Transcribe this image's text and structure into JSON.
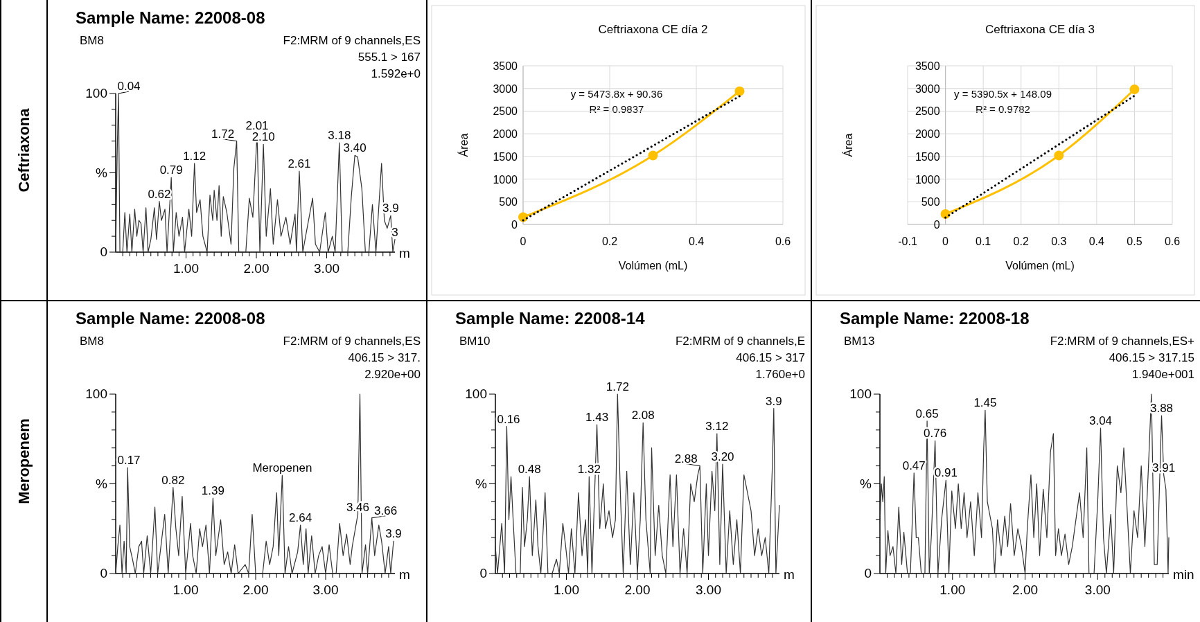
{
  "chart_data": [
    {
      "type": "other",
      "annotations": [
        "Ceftriaxona",
        "Meropenem"
      ]
    },
    {
      "type": "line",
      "title": "Sample Name: 22008-08",
      "subtitle": "BM8",
      "xlabel": "m",
      "xlim": [
        0,
        3.97
      ],
      "ylim": [
        0,
        100
      ],
      "xticks": [
        {
          "value": 0.1,
          "label": null
        },
        {
          "value": 0.2,
          "label": null
        },
        {
          "value": 0.3,
          "label": null
        },
        {
          "value": 0.4,
          "label": null
        },
        {
          "value": 0.5,
          "label": null
        },
        {
          "value": 0.6,
          "label": null
        },
        {
          "value": 0.7,
          "label": null
        },
        {
          "value": 0.8,
          "label": null
        },
        {
          "value": 0.9,
          "label": null
        },
        {
          "value": 1,
          "label": "1.00"
        },
        {
          "value": 1.1,
          "label": null
        },
        {
          "value": 1.2,
          "label": null
        },
        {
          "value": 1.3,
          "label": null
        },
        {
          "value": 1.4,
          "label": null
        },
        {
          "value": 1.5,
          "label": null
        },
        {
          "value": 1.6,
          "label": null
        },
        {
          "value": 1.7,
          "label": null
        },
        {
          "value": 1.8,
          "label": null
        },
        {
          "value": 1.9,
          "label": null
        },
        {
          "value": 2,
          "label": "2.00"
        },
        {
          "value": 2.1,
          "label": null
        },
        {
          "value": 2.2,
          "label": null
        },
        {
          "value": 2.3,
          "label": null
        },
        {
          "value": 2.4,
          "label": null
        },
        {
          "value": 2.5,
          "label": null
        },
        {
          "value": 2.6,
          "label": null
        },
        {
          "value": 2.7,
          "label": null
        },
        {
          "value": 2.8,
          "label": null
        },
        {
          "value": 2.9,
          "label": null
        },
        {
          "value": 3,
          "label": "3.00"
        },
        {
          "value": 3.1,
          "label": null
        },
        {
          "value": 3.2,
          "label": null
        },
        {
          "value": 3.3,
          "label": null
        },
        {
          "value": 3.4,
          "label": null
        },
        {
          "value": 3.5,
          "label": null
        },
        {
          "value": 3.6,
          "label": null
        },
        {
          "value": 3.7,
          "label": null
        },
        {
          "value": 3.8,
          "label": null
        },
        {
          "value": 3.9,
          "label": null
        }
      ],
      "yticks": [
        0,
        {
          "value": 10,
          "label": null
        },
        {
          "value": 20,
          "label": null
        },
        {
          "value": 30,
          "label": null
        },
        {
          "value": 40,
          "label": null
        },
        {
          "value": 50,
          "label": "%"
        },
        {
          "value": 60,
          "label": null
        },
        {
          "value": 70,
          "label": null
        },
        {
          "value": 80,
          "label": null
        },
        {
          "value": 90,
          "label": null
        },
        100
      ],
      "series": [
        {
          "color": "#333333",
          "x": [
            0,
            0.02,
            0.04,
            0.06,
            0.1,
            0.13,
            0.16,
            0.2,
            0.23,
            0.27,
            0.3,
            0.33,
            0.36,
            0.39,
            0.43,
            0.46,
            0.5,
            0.55,
            0.58,
            0.62,
            0.65,
            0.7,
            0.73,
            0.79,
            0.82,
            0.86,
            0.9,
            0.95,
            0.98,
            1.04,
            1.08,
            1.12,
            1.15,
            1.2,
            1.24,
            1.3,
            1.34,
            1.38,
            1.4,
            1.44,
            1.47,
            1.5,
            1.53,
            1.58,
            1.64,
            1.68,
            1.72,
            1.75,
            1.85,
            1.9,
            1.95,
            2.01,
            2.05,
            2.1,
            2.14,
            2.2,
            2.24,
            2.3,
            2.35,
            2.42,
            2.48,
            2.55,
            2.57,
            2.61,
            2.66,
            2.7,
            2.8,
            2.84,
            2.9,
            2.98,
            3.02,
            3.08,
            3.12,
            3.18,
            3.22,
            3.3,
            3.35,
            3.4,
            3.44,
            3.5,
            3.55,
            3.6,
            3.65,
            3.7,
            3.78,
            3.82,
            3.86,
            3.91,
            3.94,
            3.97
          ],
          "values": [
            0,
            60,
            100,
            0,
            0,
            25,
            0,
            24,
            0,
            27,
            10,
            20,
            18,
            0,
            28,
            0,
            8,
            28,
            8,
            32,
            20,
            27,
            0,
            47,
            0,
            25,
            10,
            22,
            0,
            27,
            10,
            56,
            25,
            33,
            10,
            0,
            36,
            20,
            39,
            20,
            42,
            10,
            35,
            25,
            5,
            53,
            70,
            0,
            0,
            34,
            22,
            75,
            0,
            68,
            10,
            40,
            5,
            33,
            10,
            22,
            5,
            24,
            0,
            51,
            0,
            10,
            34,
            5,
            0,
            25,
            0,
            10,
            0,
            69,
            0,
            0,
            35,
            61,
            60,
            40,
            0,
            0,
            30,
            0,
            56,
            20,
            15,
            23,
            0,
            8
          ]
        }
      ],
      "annotations": [
        "F2:MRM of 9 channels,ES",
        "555.1 > 167",
        "1.592e+0",
        {
          "text": "0.04",
          "x": 0.04,
          "y": 100
        },
        {
          "text": "0.62",
          "x": 0.62,
          "y": 32
        },
        {
          "text": "0.79",
          "x": 0.79,
          "y": 47
        },
        {
          "text": "1.12",
          "x": 1.12,
          "y": 56
        },
        {
          "text": "1.72",
          "x": 1.72,
          "y": 70
        },
        {
          "text": "2.01",
          "x": 2.01,
          "y": 75
        },
        {
          "text": "2.10",
          "x": 2.1,
          "y": 68
        },
        {
          "text": "2.61",
          "x": 2.61,
          "y": 51
        },
        {
          "text": "3.18",
          "x": 3.18,
          "y": 69
        },
        {
          "text": "3.40",
          "x": 3.4,
          "y": 61
        },
        {
          "text": "3.9",
          "x": 3.91,
          "y": 23
        },
        {
          "text": "3",
          "x": 3.97,
          "y": 8
        }
      ]
    },
    {
      "type": "line",
      "title": "Ceftriaxona CE día 2",
      "xlabel": "Volúmen (mL)",
      "ylabel": "Área",
      "xlim": [
        0,
        0.6
      ],
      "xticks": [
        0,
        0.2,
        0.4,
        0.6
      ],
      "ylim": [
        0,
        3500
      ],
      "yticks": [
        0,
        500,
        1000,
        1500,
        2000,
        2500,
        3000,
        3500
      ],
      "grid": true,
      "series": [
        {
          "color": "#ffc000",
          "marker": "circle",
          "x": [
            0,
            0.3,
            0.5
          ],
          "values": [
            160,
            1520,
            2940
          ]
        },
        {
          "color": "#000000",
          "line_style": "dotted",
          "x": [
            0,
            0.5
          ],
          "values": [
            90,
            2830
          ]
        }
      ],
      "annotations": [
        "y = 5473.8x + 90.36",
        "R² = 0.9837"
      ]
    },
    {
      "type": "line",
      "title": "Ceftriaxona CE día 3",
      "xlabel": "Volúmen (mL)",
      "ylabel": "Área",
      "xlim": [
        -0.1,
        0.6
      ],
      "xticks": [
        -0.1,
        0,
        0.1,
        0.2,
        0.3,
        0.4,
        0.5,
        0.6
      ],
      "ylim": [
        0,
        3500
      ],
      "yticks": [
        0,
        500,
        1000,
        1500,
        2000,
        2500,
        3000,
        3500
      ],
      "grid": true,
      "series": [
        {
          "color": "#ffc000",
          "marker": "circle",
          "x": [
            0,
            0.3,
            0.5
          ],
          "values": [
            230,
            1520,
            2980
          ]
        },
        {
          "color": "#000000",
          "line_style": "dotted",
          "x": [
            0,
            0.5
          ],
          "values": [
            150,
            2840
          ]
        }
      ],
      "annotations": [
        "y = 5390.5x + 148.09",
        "R² = 0.9782"
      ]
    },
    {
      "type": "line",
      "title": "Sample Name: 22008-08",
      "subtitle": "BM8",
      "xlabel": "m",
      "xlim": [
        0,
        3.99
      ],
      "ylim": [
        0,
        100
      ],
      "xticks": [
        {
          "value": 0.1,
          "label": null
        },
        {
          "value": 0.2,
          "label": null
        },
        {
          "value": 0.3,
          "label": null
        },
        {
          "value": 0.4,
          "label": null
        },
        {
          "value": 0.5,
          "label": null
        },
        {
          "value": 0.6,
          "label": null
        },
        {
          "value": 0.7,
          "label": null
        },
        {
          "value": 0.8,
          "label": null
        },
        {
          "value": 0.9,
          "label": null
        },
        {
          "value": 1,
          "label": "1.00"
        },
        {
          "value": 1.1,
          "label": null
        },
        {
          "value": 1.2,
          "label": null
        },
        {
          "value": 1.3,
          "label": null
        },
        {
          "value": 1.4,
          "label": null
        },
        {
          "value": 1.5,
          "label": null
        },
        {
          "value": 1.6,
          "label": null
        },
        {
          "value": 1.7,
          "label": null
        },
        {
          "value": 1.8,
          "label": null
        },
        {
          "value": 1.9,
          "label": null
        },
        {
          "value": 2,
          "label": "2.00"
        },
        {
          "value": 2.1,
          "label": null
        },
        {
          "value": 2.2,
          "label": null
        },
        {
          "value": 2.3,
          "label": null
        },
        {
          "value": 2.4,
          "label": null
        },
        {
          "value": 2.5,
          "label": null
        },
        {
          "value": 2.6,
          "label": null
        },
        {
          "value": 2.7,
          "label": null
        },
        {
          "value": 2.8,
          "label": null
        },
        {
          "value": 2.9,
          "label": null
        },
        {
          "value": 3,
          "label": "3.00"
        },
        {
          "value": 3.1,
          "label": null
        },
        {
          "value": 3.2,
          "label": null
        },
        {
          "value": 3.3,
          "label": null
        },
        {
          "value": 3.4,
          "label": null
        },
        {
          "value": 3.5,
          "label": null
        },
        {
          "value": 3.6,
          "label": null
        },
        {
          "value": 3.7,
          "label": null
        },
        {
          "value": 3.8,
          "label": null
        },
        {
          "value": 3.9,
          "label": null
        }
      ],
      "yticks": [
        0,
        {
          "value": 10,
          "label": null
        },
        {
          "value": 20,
          "label": null
        },
        {
          "value": 30,
          "label": null
        },
        {
          "value": 40,
          "label": null
        },
        {
          "value": 50,
          "label": "%"
        },
        {
          "value": 60,
          "label": null
        },
        {
          "value": 70,
          "label": null
        },
        {
          "value": 80,
          "label": null
        },
        {
          "value": 90,
          "label": null
        },
        100
      ],
      "series": [
        {
          "color": "#333333",
          "x": [
            0,
            0.03,
            0.06,
            0.09,
            0.12,
            0.15,
            0.17,
            0.2,
            0.24,
            0.28,
            0.33,
            0.37,
            0.4,
            0.45,
            0.5,
            0.56,
            0.6,
            0.7,
            0.75,
            0.82,
            0.86,
            0.9,
            0.95,
            1.0,
            1.07,
            1.1,
            1.15,
            1.2,
            1.24,
            1.29,
            1.34,
            1.39,
            1.43,
            1.5,
            1.55,
            1.6,
            1.65,
            1.7,
            1.75,
            1.85,
            1.9,
            1.95,
            2.0,
            2.1,
            2.15,
            2.2,
            2.25,
            2.3,
            2.33,
            2.38,
            2.42,
            2.47,
            2.52,
            2.6,
            2.64,
            2.68,
            2.72,
            2.75,
            2.8,
            2.85,
            2.9,
            2.95,
            3.0,
            3.05,
            3.1,
            3.15,
            3.2,
            3.25,
            3.3,
            3.35,
            3.38,
            3.46,
            3.49,
            3.52,
            3.57,
            3.6,
            3.66,
            3.7,
            3.76,
            3.8,
            3.85,
            3.9,
            3.93,
            3.97
          ],
          "values": [
            0,
            15,
            27,
            0,
            18,
            0,
            59,
            15,
            8,
            0,
            15,
            18,
            0,
            21,
            0,
            37,
            0,
            33,
            0,
            48,
            25,
            10,
            43,
            0,
            28,
            10,
            0,
            25,
            15,
            27,
            0,
            42,
            10,
            30,
            5,
            12,
            0,
            16,
            0,
            5,
            0,
            33,
            0,
            0,
            18,
            5,
            15,
            45,
            10,
            55,
            0,
            15,
            0,
            12,
            27,
            5,
            25,
            0,
            21,
            0,
            10,
            15,
            0,
            16,
            0,
            0,
            28,
            10,
            22,
            5,
            15,
            33,
            100,
            0,
            16,
            0,
            31,
            10,
            27,
            18,
            0,
            15,
            0,
            18
          ]
        }
      ],
      "annotations": [
        "F2:MRM of 9 channels,ES",
        "406.15 > 317.",
        "2.920e+00",
        {
          "text": "0.17",
          "x": 0.17,
          "y": 59
        },
        {
          "text": "0.82",
          "x": 0.82,
          "y": 48
        },
        {
          "text": "1.39",
          "x": 1.39,
          "y": 42
        },
        {
          "text": "Meropenen",
          "x": 2.38,
          "y": 55
        },
        {
          "text": "2.64",
          "x": 2.64,
          "y": 27
        },
        {
          "text": "3.46",
          "x": 3.46,
          "y": 33
        },
        {
          "text": "3.66",
          "x": 3.66,
          "y": 31
        },
        {
          "text": "3.9",
          "x": 3.97,
          "y": 18
        }
      ]
    },
    {
      "type": "line",
      "title": "Sample Name: 22008-14",
      "subtitle": "BM10",
      "xlabel": "m",
      "xlim": [
        0,
        4.0
      ],
      "ylim": [
        0,
        100
      ],
      "xticks": [
        {
          "value": 0.1,
          "label": null
        },
        {
          "value": 0.2,
          "label": null
        },
        {
          "value": 0.3,
          "label": null
        },
        {
          "value": 0.4,
          "label": null
        },
        {
          "value": 0.5,
          "label": null
        },
        {
          "value": 0.6,
          "label": null
        },
        {
          "value": 0.7,
          "label": null
        },
        {
          "value": 0.8,
          "label": null
        },
        {
          "value": 0.9,
          "label": null
        },
        {
          "value": 1,
          "label": "1.00"
        },
        {
          "value": 1.1,
          "label": null
        },
        {
          "value": 1.2,
          "label": null
        },
        {
          "value": 1.3,
          "label": null
        },
        {
          "value": 1.4,
          "label": null
        },
        {
          "value": 1.5,
          "label": null
        },
        {
          "value": 1.6,
          "label": null
        },
        {
          "value": 1.7,
          "label": null
        },
        {
          "value": 1.8,
          "label": null
        },
        {
          "value": 1.9,
          "label": null
        },
        {
          "value": 2,
          "label": "2.00"
        },
        {
          "value": 2.1,
          "label": null
        },
        {
          "value": 2.2,
          "label": null
        },
        {
          "value": 2.3,
          "label": null
        },
        {
          "value": 2.4,
          "label": null
        },
        {
          "value": 2.5,
          "label": null
        },
        {
          "value": 2.6,
          "label": null
        },
        {
          "value": 2.7,
          "label": null
        },
        {
          "value": 2.8,
          "label": null
        },
        {
          "value": 2.9,
          "label": null
        },
        {
          "value": 3,
          "label": "3.00"
        },
        {
          "value": 3.1,
          "label": null
        },
        {
          "value": 3.2,
          "label": null
        },
        {
          "value": 3.3,
          "label": null
        },
        {
          "value": 3.4,
          "label": null
        },
        {
          "value": 3.5,
          "label": null
        },
        {
          "value": 3.6,
          "label": null
        },
        {
          "value": 3.7,
          "label": null
        },
        {
          "value": 3.8,
          "label": null
        },
        {
          "value": 3.9,
          "label": null
        }
      ],
      "yticks": [
        0,
        {
          "value": 10,
          "label": null
        },
        {
          "value": 20,
          "label": null
        },
        {
          "value": 30,
          "label": null
        },
        {
          "value": 40,
          "label": null
        },
        {
          "value": 50,
          "label": "%"
        },
        {
          "value": 60,
          "label": null
        },
        {
          "value": 70,
          "label": null
        },
        {
          "value": 80,
          "label": null
        },
        {
          "value": 90,
          "label": null
        },
        100
      ],
      "series": [
        {
          "color": "#333333",
          "x": [
            0,
            0.03,
            0.09,
            0.13,
            0.16,
            0.19,
            0.22,
            0.25,
            0.29,
            0.35,
            0.38,
            0.41,
            0.45,
            0.48,
            0.52,
            0.57,
            0.6,
            0.64,
            0.7,
            0.74,
            0.8,
            0.86,
            0.9,
            0.95,
            0.99,
            1.03,
            1.07,
            1.12,
            1.17,
            1.22,
            1.27,
            1.3,
            1.32,
            1.36,
            1.41,
            1.43,
            1.47,
            1.52,
            1.55,
            1.6,
            1.65,
            1.69,
            1.72,
            1.76,
            1.8,
            1.85,
            1.9,
            1.95,
            2.0,
            2.04,
            2.08,
            2.12,
            2.18,
            2.2,
            2.25,
            2.3,
            2.35,
            2.4,
            2.46,
            2.5,
            2.55,
            2.6,
            2.65,
            2.7,
            2.75,
            2.8,
            2.85,
            2.88,
            2.92,
            2.97,
            3.0,
            3.05,
            3.09,
            3.12,
            3.16,
            3.2,
            3.25,
            3.3,
            3.35,
            3.4,
            3.45,
            3.5,
            3.55,
            3.6,
            3.65,
            3.7,
            3.75,
            3.8,
            3.85,
            3.9,
            3.92,
            3.95,
            4.0
          ],
          "values": [
            15,
            0,
            28,
            0,
            82,
            30,
            54,
            30,
            0,
            0,
            48,
            15,
            30,
            54,
            10,
            41,
            15,
            0,
            45,
            0,
            0,
            8,
            0,
            28,
            15,
            0,
            25,
            0,
            45,
            10,
            30,
            0,
            54,
            0,
            60,
            83,
            25,
            50,
            25,
            35,
            20,
            30,
            100,
            45,
            0,
            57,
            5,
            45,
            0,
            30,
            84,
            30,
            0,
            70,
            10,
            38,
            10,
            0,
            55,
            15,
            55,
            0,
            25,
            0,
            50,
            40,
            55,
            60,
            0,
            50,
            10,
            57,
            35,
            78,
            5,
            61,
            0,
            35,
            5,
            30,
            0,
            55,
            45,
            35,
            10,
            25,
            10,
            20,
            0,
            60,
            92,
            0,
            38
          ]
        }
      ],
      "annotations": [
        "F2:MRM of 9 channels,E",
        "406.15 > 317",
        "1.760e+0",
        {
          "text": "0.16",
          "x": 0.16,
          "y": 82
        },
        {
          "text": "0.48",
          "x": 0.48,
          "y": 54
        },
        {
          "text": "1.32",
          "x": 1.32,
          "y": 54
        },
        {
          "text": "1.43",
          "x": 1.43,
          "y": 83
        },
        {
          "text": "1.72",
          "x": 1.72,
          "y": 100
        },
        {
          "text": "2.08",
          "x": 2.08,
          "y": 84
        },
        {
          "text": "2.88",
          "x": 2.88,
          "y": 60
        },
        {
          "text": "3.12",
          "x": 3.12,
          "y": 78
        },
        {
          "text": "3.20",
          "x": 3.2,
          "y": 61
        },
        {
          "text": "3.9",
          "x": 3.92,
          "y": 92
        }
      ]
    },
    {
      "type": "line",
      "title": "Sample Name: 22008-18",
      "subtitle": "BM13",
      "xlabel": "min",
      "xlim": [
        0,
        3.98
      ],
      "ylim": [
        0,
        100
      ],
      "xticks": [
        {
          "value": 0.1,
          "label": null
        },
        {
          "value": 0.2,
          "label": null
        },
        {
          "value": 0.3,
          "label": null
        },
        {
          "value": 0.4,
          "label": null
        },
        {
          "value": 0.5,
          "label": null
        },
        {
          "value": 0.6,
          "label": null
        },
        {
          "value": 0.7,
          "label": null
        },
        {
          "value": 0.8,
          "label": null
        },
        {
          "value": 0.9,
          "label": null
        },
        {
          "value": 1,
          "label": "1.00"
        },
        {
          "value": 1.1,
          "label": null
        },
        {
          "value": 1.2,
          "label": null
        },
        {
          "value": 1.3,
          "label": null
        },
        {
          "value": 1.4,
          "label": null
        },
        {
          "value": 1.5,
          "label": null
        },
        {
          "value": 1.6,
          "label": null
        },
        {
          "value": 1.7,
          "label": null
        },
        {
          "value": 1.8,
          "label": null
        },
        {
          "value": 1.9,
          "label": null
        },
        {
          "value": 2,
          "label": "2.00"
        },
        {
          "value": 2.1,
          "label": null
        },
        {
          "value": 2.2,
          "label": null
        },
        {
          "value": 2.3,
          "label": null
        },
        {
          "value": 2.4,
          "label": null
        },
        {
          "value": 2.5,
          "label": null
        },
        {
          "value": 2.6,
          "label": null
        },
        {
          "value": 2.7,
          "label": null
        },
        {
          "value": 2.8,
          "label": null
        },
        {
          "value": 2.9,
          "label": null
        },
        {
          "value": 3,
          "label": "3.00"
        },
        {
          "value": 3.1,
          "label": null
        },
        {
          "value": 3.2,
          "label": null
        },
        {
          "value": 3.3,
          "label": null
        },
        {
          "value": 3.4,
          "label": null
        },
        {
          "value": 3.5,
          "label": null
        },
        {
          "value": 3.6,
          "label": null
        },
        {
          "value": 3.7,
          "label": null
        },
        {
          "value": 3.8,
          "label": null
        },
        {
          "value": 3.9,
          "label": null
        }
      ],
      "yticks": [
        0,
        {
          "value": 10,
          "label": null
        },
        {
          "value": 20,
          "label": null
        },
        {
          "value": 30,
          "label": null
        },
        {
          "value": 40,
          "label": null
        },
        {
          "value": 50,
          "label": "%"
        },
        {
          "value": 60,
          "label": null
        },
        {
          "value": 70,
          "label": null
        },
        {
          "value": 80,
          "label": null
        },
        {
          "value": 90,
          "label": null
        },
        100
      ],
      "series": [
        {
          "color": "#333333",
          "x": [
            0,
            0.02,
            0.04,
            0.06,
            0.08,
            0.11,
            0.14,
            0.18,
            0.22,
            0.26,
            0.3,
            0.33,
            0.38,
            0.42,
            0.47,
            0.5,
            0.53,
            0.57,
            0.62,
            0.65,
            0.68,
            0.71,
            0.76,
            0.8,
            0.85,
            0.91,
            0.95,
            0.99,
            1.04,
            1.08,
            1.12,
            1.16,
            1.2,
            1.25,
            1.3,
            1.35,
            1.4,
            1.43,
            1.45,
            1.48,
            1.55,
            1.58,
            1.62,
            1.67,
            1.72,
            1.76,
            1.8,
            1.85,
            1.9,
            1.95,
            2.0,
            2.03,
            2.08,
            2.12,
            2.16,
            2.2,
            2.25,
            2.3,
            2.35,
            2.39,
            2.42,
            2.46,
            2.5,
            2.55,
            2.6,
            2.65,
            2.7,
            2.75,
            2.8,
            2.85,
            2.88,
            2.95,
            3.0,
            3.04,
            3.08,
            3.12,
            3.18,
            3.22,
            3.27,
            3.32,
            3.36,
            3.4,
            3.45,
            3.5,
            3.55,
            3.6,
            3.65,
            3.7,
            3.74,
            3.78,
            3.82,
            3.88,
            3.91,
            3.94,
            3.97,
            3.98
          ],
          "values": [
            28,
            50,
            40,
            54,
            0,
            24,
            10,
            15,
            0,
            37,
            5,
            23,
            0,
            0,
            56,
            20,
            20,
            0,
            0,
            85,
            0,
            22,
            74,
            0,
            30,
            52,
            0,
            46,
            25,
            50,
            25,
            45,
            20,
            40,
            10,
            45,
            20,
            70,
            91,
            40,
            25,
            0,
            30,
            10,
            32,
            15,
            39,
            10,
            25,
            15,
            0,
            25,
            55,
            20,
            50,
            10,
            47,
            20,
            68,
            78,
            10,
            25,
            10,
            22,
            5,
            15,
            30,
            45,
            20,
            70,
            0,
            0,
            40,
            81,
            20,
            0,
            33,
            0,
            60,
            45,
            70,
            40,
            0,
            35,
            20,
            60,
            15,
            60,
            100,
            5,
            5,
            88,
            55,
            47,
            0,
            20
          ]
        }
      ],
      "annotations": [
        "F2:MRM of 9 channels,ES+",
        "406.15 > 317.15",
        "1.940e+001",
        {
          "text": "0.47",
          "x": 0.47,
          "y": 56
        },
        {
          "text": "0.65",
          "x": 0.65,
          "y": 85
        },
        {
          "text": "0.76",
          "x": 0.76,
          "y": 74
        },
        {
          "text": "0.91",
          "x": 0.91,
          "y": 52
        },
        {
          "text": "1.45",
          "x": 1.45,
          "y": 91
        },
        {
          "text": "3.04",
          "x": 3.04,
          "y": 81
        },
        {
          "text": "3.88",
          "x": 3.88,
          "y": 88
        },
        {
          "text": "3.91",
          "x": 3.91,
          "y": 55
        }
      ]
    }
  ]
}
